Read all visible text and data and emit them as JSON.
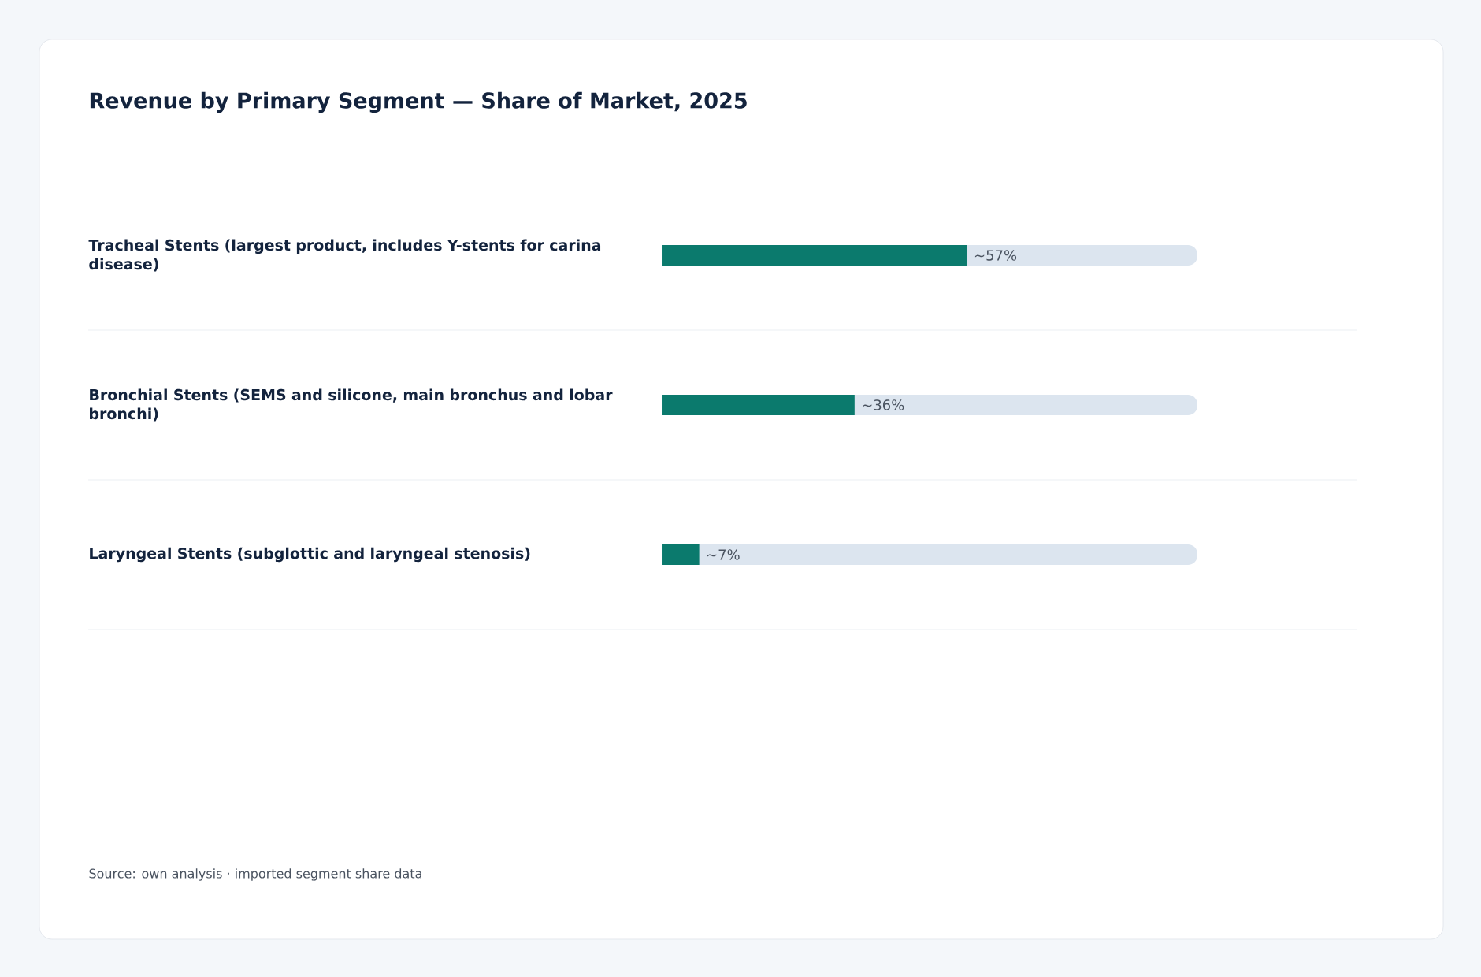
{
  "chart_data": {
    "type": "bar",
    "orientation": "horizontal",
    "title": "Revenue by Primary Segment — Share of Market, 2025",
    "categories": [
      "Tracheal Stents (largest product, includes Y-stents for carina disease)",
      "Bronchial Stents (SEMS and silicone, main bronchus and lobar bronchi)",
      "Laryngeal Stents (subglottic and laryngeal stenosis)"
    ],
    "values": [
      57,
      36,
      7
    ],
    "value_labels": [
      "~57%",
      "~36%",
      "~7%"
    ],
    "color": "#0b7a6d",
    "annotations": [
      "Source: own analysis · imported segment share data"
    ]
  }
}
